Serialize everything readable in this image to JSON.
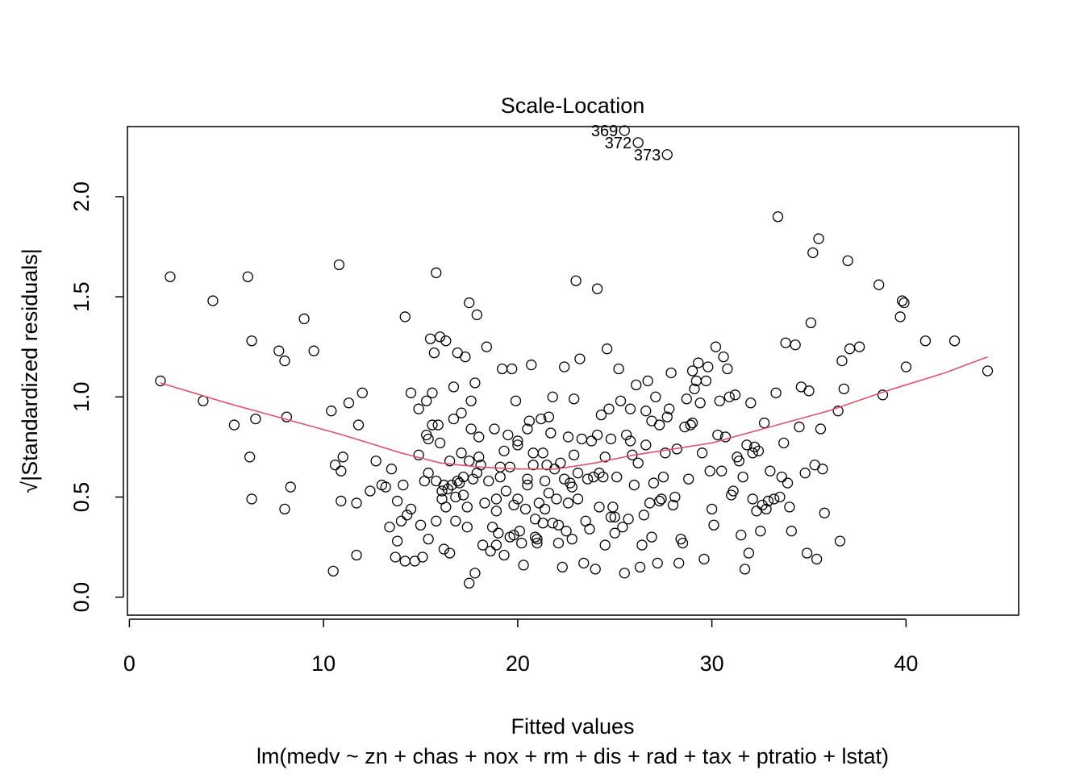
{
  "chart_data": {
    "type": "scatter",
    "title": "Scale-Location",
    "xlabel": "Fitted values",
    "ylabel": "√|Standardized residuals|",
    "subtitle": "lm(medv ~ zn + chas + nox + rm + dis + rad + tax + ptratio + lstat)",
    "xlim": [
      -0.1,
      45.8
    ],
    "ylim": [
      -0.09,
      2.35
    ],
    "xticks": [
      0,
      10,
      20,
      30,
      40
    ],
    "yticks": [
      0.0,
      0.5,
      1.0,
      1.5,
      2.0
    ],
    "xtick_labels": [
      "0",
      "10",
      "20",
      "30",
      "40"
    ],
    "ytick_labels": [
      "0.0",
      "0.5",
      "1.0",
      "1.5",
      "2.0"
    ],
    "grid": false,
    "colors": {
      "points": "#000000",
      "smooth": "#DF536B",
      "axes": "#000000"
    },
    "labeled_points": [
      {
        "label": "369",
        "x": 25.5,
        "y": 2.33
      },
      {
        "label": "372",
        "x": 26.2,
        "y": 2.27
      },
      {
        "label": "373",
        "x": 27.7,
        "y": 2.21
      }
    ],
    "smooth_line": [
      [
        1.6,
        1.07
      ],
      [
        5,
        0.97
      ],
      [
        8,
        0.89
      ],
      [
        11,
        0.81
      ],
      [
        14,
        0.72
      ],
      [
        16,
        0.67
      ],
      [
        18,
        0.65
      ],
      [
        20,
        0.64
      ],
      [
        22,
        0.64
      ],
      [
        24,
        0.67
      ],
      [
        26,
        0.71
      ],
      [
        28,
        0.74
      ],
      [
        30,
        0.77
      ],
      [
        33,
        0.85
      ],
      [
        36,
        0.93
      ],
      [
        39,
        1.03
      ],
      [
        42,
        1.12
      ],
      [
        44.2,
        1.2
      ]
    ],
    "points": [
      [
        1.6,
        1.08
      ],
      [
        2.1,
        1.6
      ],
      [
        3.8,
        0.98
      ],
      [
        4.3,
        1.48
      ],
      [
        5.4,
        0.86
      ],
      [
        6.1,
        1.6
      ],
      [
        6.2,
        0.7
      ],
      [
        6.3,
        0.49
      ],
      [
        6.3,
        1.28
      ],
      [
        6.5,
        0.89
      ],
      [
        7.7,
        1.23
      ],
      [
        8.0,
        1.18
      ],
      [
        8.0,
        0.44
      ],
      [
        8.1,
        0.9
      ],
      [
        8.3,
        0.55
      ],
      [
        9.0,
        1.39
      ],
      [
        9.5,
        1.23
      ],
      [
        10.4,
        0.93
      ],
      [
        10.5,
        0.13
      ],
      [
        10.6,
        0.66
      ],
      [
        10.8,
        1.66
      ],
      [
        10.9,
        0.48
      ],
      [
        10.9,
        0.63
      ],
      [
        11.0,
        0.7
      ],
      [
        11.3,
        0.97
      ],
      [
        11.7,
        0.47
      ],
      [
        11.7,
        0.21
      ],
      [
        11.8,
        0.86
      ],
      [
        12.0,
        1.02
      ],
      [
        12.4,
        0.53
      ],
      [
        12.7,
        0.68
      ],
      [
        13.0,
        0.56
      ],
      [
        13.2,
        0.55
      ],
      [
        13.4,
        0.35
      ],
      [
        13.5,
        0.64
      ],
      [
        13.7,
        0.2
      ],
      [
        13.8,
        0.28
      ],
      [
        13.8,
        0.48
      ],
      [
        14.0,
        0.38
      ],
      [
        14.1,
        0.56
      ],
      [
        14.2,
        1.4
      ],
      [
        14.2,
        0.18
      ],
      [
        14.3,
        0.41
      ],
      [
        14.5,
        0.44
      ],
      [
        14.5,
        1.02
      ],
      [
        14.7,
        0.18
      ],
      [
        14.9,
        0.94
      ],
      [
        14.9,
        0.71
      ],
      [
        15.0,
        0.36
      ],
      [
        15.1,
        0.2
      ],
      [
        15.2,
        0.58
      ],
      [
        15.3,
        0.98
      ],
      [
        15.3,
        0.81
      ],
      [
        15.4,
        0.29
      ],
      [
        15.4,
        0.62
      ],
      [
        15.4,
        0.79
      ],
      [
        15.5,
        1.29
      ],
      [
        15.6,
        1.02
      ],
      [
        15.6,
        0.86
      ],
      [
        15.7,
        1.22
      ],
      [
        15.8,
        0.58
      ],
      [
        15.8,
        1.62
      ],
      [
        15.9,
        0.86
      ],
      [
        16.0,
        1.3
      ],
      [
        16.0,
        0.77
      ],
      [
        16.1,
        0.49
      ],
      [
        16.2,
        0.56
      ],
      [
        16.2,
        0.24
      ],
      [
        16.3,
        1.28
      ],
      [
        16.3,
        0.45
      ],
      [
        16.4,
        0.54
      ],
      [
        16.5,
        0.22
      ],
      [
        16.5,
        0.68
      ],
      [
        16.6,
        0.56
      ],
      [
        16.7,
        0.89
      ],
      [
        16.7,
        1.05
      ],
      [
        16.8,
        0.5
      ],
      [
        16.8,
        0.38
      ],
      [
        16.9,
        1.22
      ],
      [
        17.0,
        0.57
      ],
      [
        17.1,
        0.92
      ],
      [
        17.1,
        0.72
      ],
      [
        17.2,
        0.51
      ],
      [
        17.3,
        1.2
      ],
      [
        17.4,
        0.45
      ],
      [
        17.5,
        0.68
      ],
      [
        17.5,
        1.47
      ],
      [
        17.5,
        0.07
      ],
      [
        17.6,
        0.98
      ],
      [
        17.6,
        0.84
      ],
      [
        17.7,
        0.59
      ],
      [
        17.8,
        0.12
      ],
      [
        17.8,
        1.07
      ],
      [
        17.9,
        0.62
      ],
      [
        17.9,
        1.41
      ],
      [
        18.0,
        0.8
      ],
      [
        18.1,
        0.66
      ],
      [
        18.2,
        0.26
      ],
      [
        18.3,
        0.47
      ],
      [
        18.4,
        1.25
      ],
      [
        18.5,
        0.58
      ],
      [
        18.6,
        0.23
      ],
      [
        18.8,
        0.84
      ],
      [
        18.9,
        0.26
      ],
      [
        18.9,
        0.43
      ],
      [
        19.0,
        0.32
      ],
      [
        19.1,
        0.65
      ],
      [
        19.2,
        1.14
      ],
      [
        19.3,
        0.21
      ],
      [
        19.3,
        0.73
      ],
      [
        19.4,
        0.53
      ],
      [
        19.5,
        0.81
      ],
      [
        19.6,
        0.65
      ],
      [
        19.7,
        1.14
      ],
      [
        19.8,
        0.31
      ],
      [
        19.8,
        0.46
      ],
      [
        19.9,
        0.98
      ],
      [
        20.0,
        0.76
      ],
      [
        20.0,
        0.49
      ],
      [
        20.0,
        0.78
      ],
      [
        20.1,
        0.33
      ],
      [
        20.2,
        0.27
      ],
      [
        20.3,
        0.16
      ],
      [
        20.4,
        0.44
      ],
      [
        20.5,
        0.56
      ],
      [
        20.5,
        0.59
      ],
      [
        20.6,
        0.88
      ],
      [
        20.7,
        1.16
      ],
      [
        20.8,
        0.66
      ],
      [
        20.8,
        0.72
      ],
      [
        20.9,
        0.39
      ],
      [
        21.0,
        0.27
      ],
      [
        21.0,
        0.29
      ],
      [
        21.1,
        0.47
      ],
      [
        21.2,
        0.89
      ],
      [
        21.3,
        0.72
      ],
      [
        21.4,
        0.44
      ],
      [
        21.5,
        0.66
      ],
      [
        21.6,
        0.9
      ],
      [
        21.7,
        0.82
      ],
      [
        21.8,
        1.0
      ],
      [
        21.8,
        0.37
      ],
      [
        21.9,
        0.64
      ],
      [
        22.0,
        0.49
      ],
      [
        22.1,
        0.36
      ],
      [
        22.2,
        0.67
      ],
      [
        22.3,
        0.15
      ],
      [
        22.4,
        0.59
      ],
      [
        22.4,
        1.15
      ],
      [
        22.5,
        0.33
      ],
      [
        22.6,
        0.47
      ],
      [
        22.7,
        0.57
      ],
      [
        22.8,
        0.29
      ],
      [
        22.8,
        0.55
      ],
      [
        22.9,
        0.99
      ],
      [
        23.0,
        1.58
      ],
      [
        23.1,
        0.62
      ],
      [
        23.2,
        1.19
      ],
      [
        23.3,
        0.79
      ],
      [
        23.4,
        0.17
      ],
      [
        23.5,
        0.38
      ],
      [
        23.6,
        0.59
      ],
      [
        23.8,
        0.78
      ],
      [
        23.9,
        0.6
      ],
      [
        24.0,
        0.14
      ],
      [
        24.1,
        0.81
      ],
      [
        24.1,
        1.54
      ],
      [
        24.2,
        0.62
      ],
      [
        24.3,
        0.91
      ],
      [
        24.4,
        0.6
      ],
      [
        24.5,
        0.7
      ],
      [
        24.6,
        1.24
      ],
      [
        24.7,
        0.94
      ],
      [
        24.8,
        0.79
      ],
      [
        24.9,
        0.45
      ],
      [
        25.0,
        0.32
      ],
      [
        25.1,
        0.6
      ],
      [
        25.2,
        1.14
      ],
      [
        25.3,
        0.98
      ],
      [
        25.4,
        0.35
      ],
      [
        25.5,
        0.12
      ],
      [
        25.6,
        0.81
      ],
      [
        25.7,
        0.39
      ],
      [
        25.8,
        0.78
      ],
      [
        25.9,
        0.71
      ],
      [
        26.0,
        0.56
      ],
      [
        26.1,
        1.06
      ],
      [
        26.2,
        0.67
      ],
      [
        26.3,
        0.15
      ],
      [
        26.4,
        0.26
      ],
      [
        26.5,
        0.41
      ],
      [
        26.6,
        0.93
      ],
      [
        26.7,
        1.08
      ],
      [
        26.8,
        0.47
      ],
      [
        26.9,
        0.88
      ],
      [
        27.0,
        0.57
      ],
      [
        27.1,
        1.0
      ],
      [
        27.2,
        0.17
      ],
      [
        27.3,
        0.48
      ],
      [
        27.4,
        0.49
      ],
      [
        27.5,
        0.6
      ],
      [
        27.6,
        0.72
      ],
      [
        27.7,
        0.9
      ],
      [
        27.8,
        0.94
      ],
      [
        27.9,
        1.12
      ],
      [
        28.0,
        0.46
      ],
      [
        28.1,
        0.5
      ],
      [
        28.2,
        0.74
      ],
      [
        28.3,
        0.17
      ],
      [
        28.4,
        0.29
      ],
      [
        28.5,
        0.27
      ],
      [
        28.6,
        0.85
      ],
      [
        28.7,
        0.99
      ],
      [
        28.8,
        0.59
      ],
      [
        28.9,
        0.86
      ],
      [
        29.0,
        0.87
      ],
      [
        29.1,
        1.04
      ],
      [
        29.2,
        1.08
      ],
      [
        29.3,
        1.17
      ],
      [
        29.4,
        0.97
      ],
      [
        29.5,
        0.72
      ],
      [
        29.6,
        0.19
      ],
      [
        29.7,
        1.08
      ],
      [
        29.8,
        1.15
      ],
      [
        29.9,
        0.63
      ],
      [
        30.0,
        0.44
      ],
      [
        30.1,
        0.36
      ],
      [
        30.2,
        1.25
      ],
      [
        30.3,
        0.81
      ],
      [
        30.4,
        0.98
      ],
      [
        30.5,
        0.63
      ],
      [
        30.6,
        1.2
      ],
      [
        30.7,
        0.8
      ],
      [
        30.8,
        1.14
      ],
      [
        30.9,
        1.0
      ],
      [
        31.0,
        0.51
      ],
      [
        31.1,
        0.53
      ],
      [
        31.2,
        1.01
      ],
      [
        31.3,
        0.7
      ],
      [
        31.4,
        0.68
      ],
      [
        31.5,
        0.31
      ],
      [
        31.6,
        0.6
      ],
      [
        31.7,
        0.14
      ],
      [
        31.8,
        0.76
      ],
      [
        31.9,
        0.22
      ],
      [
        32.0,
        0.97
      ],
      [
        32.1,
        0.49
      ],
      [
        32.2,
        0.75
      ],
      [
        32.3,
        0.43
      ],
      [
        32.4,
        0.73
      ],
      [
        32.5,
        0.33
      ],
      [
        32.6,
        0.46
      ],
      [
        32.7,
        0.87
      ],
      [
        32.8,
        0.44
      ],
      [
        32.9,
        0.48
      ],
      [
        33.0,
        0.63
      ],
      [
        33.2,
        0.49
      ],
      [
        33.3,
        1.02
      ],
      [
        33.4,
        1.9
      ],
      [
        33.5,
        0.5
      ],
      [
        33.6,
        0.6
      ],
      [
        33.7,
        0.77
      ],
      [
        33.8,
        1.27
      ],
      [
        33.9,
        0.57
      ],
      [
        34.0,
        0.45
      ],
      [
        34.1,
        0.33
      ],
      [
        34.3,
        1.26
      ],
      [
        34.5,
        0.85
      ],
      [
        34.6,
        1.05
      ],
      [
        34.8,
        0.62
      ],
      [
        34.9,
        0.22
      ],
      [
        35.0,
        1.03
      ],
      [
        35.1,
        1.37
      ],
      [
        35.2,
        1.72
      ],
      [
        35.3,
        0.66
      ],
      [
        35.4,
        0.19
      ],
      [
        35.5,
        1.79
      ],
      [
        35.6,
        0.84
      ],
      [
        35.7,
        0.64
      ],
      [
        35.8,
        0.42
      ],
      [
        36.5,
        0.93
      ],
      [
        36.6,
        0.28
      ],
      [
        36.7,
        1.18
      ],
      [
        36.8,
        1.04
      ],
      [
        37.0,
        1.68
      ],
      [
        37.1,
        1.24
      ],
      [
        37.6,
        1.25
      ],
      [
        38.6,
        1.56
      ],
      [
        38.8,
        1.01
      ],
      [
        39.7,
        1.4
      ],
      [
        39.8,
        1.48
      ],
      [
        39.9,
        1.47
      ],
      [
        40.0,
        1.15
      ],
      [
        41.0,
        1.28
      ],
      [
        42.5,
        1.28
      ],
      [
        44.2,
        1.13
      ],
      [
        17.2,
        0.6
      ],
      [
        18.0,
        0.7
      ],
      [
        19.6,
        0.3
      ],
      [
        21.4,
        0.58
      ],
      [
        23.7,
        0.34
      ],
      [
        24.8,
        0.4
      ],
      [
        26.6,
        0.76
      ],
      [
        18.7,
        0.35
      ],
      [
        20.9,
        0.3
      ],
      [
        22.9,
        0.71
      ],
      [
        25.0,
        0.4
      ],
      [
        16.1,
        0.53
      ],
      [
        19.1,
        0.6
      ],
      [
        21.6,
        0.52
      ],
      [
        24.5,
        0.26
      ],
      [
        23.1,
        0.49
      ],
      [
        17.4,
        0.35
      ],
      [
        20.5,
        0.84
      ],
      [
        22.6,
        0.8
      ],
      [
        25.8,
        0.94
      ],
      [
        27.3,
        0.86
      ],
      [
        18.9,
        0.49
      ],
      [
        16.9,
        0.58
      ],
      [
        21.3,
        0.37
      ],
      [
        24.2,
        0.45
      ],
      [
        26.9,
        0.3
      ],
      [
        15.8,
        0.38
      ],
      [
        29.0,
        1.13
      ],
      [
        32.1,
        0.72
      ],
      [
        22.1,
        0.27
      ]
    ]
  }
}
